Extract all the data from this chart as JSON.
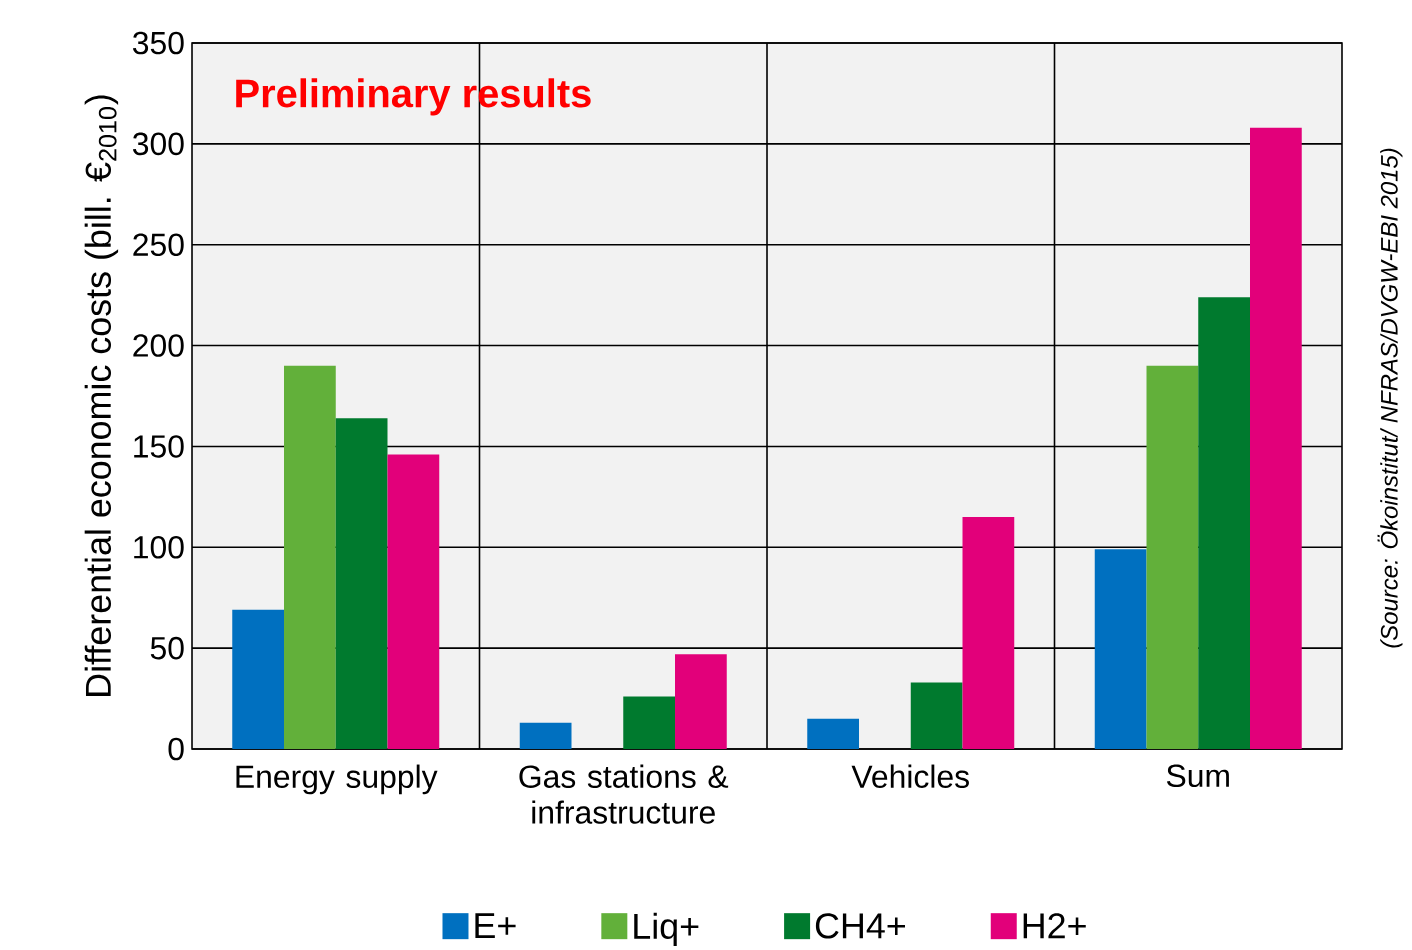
{
  "chart_data": {
    "type": "bar",
    "title": "Preliminary results",
    "ylabel": "Differential economic costs (bill. €$_{2010}$)",
    "categories": [
      "Energy supply",
      "Gas stations & infrastructure",
      "Vehicles",
      "Sum"
    ],
    "series": [
      {
        "name": "E+",
        "color": "#0070c0",
        "values": [
          69,
          13,
          15,
          99
        ]
      },
      {
        "name": "Liq+",
        "color": "#62b03a",
        "values": [
          190,
          null,
          null,
          190
        ]
      },
      {
        "name": "CH4+",
        "color": "#007a2e",
        "values": [
          164,
          26,
          33,
          224
        ]
      },
      {
        "name": "H2+",
        "color": "#e2007a",
        "values": [
          146,
          47,
          115,
          308
        ]
      }
    ],
    "ylim": [
      0,
      350
    ],
    "yticks": [
      0,
      50,
      100,
      150,
      200,
      250,
      300,
      350
    ],
    "grid": true,
    "legend": "bottom",
    "annotations": [
      "(Source: Ökoinstitut/ NFRAS/DVGW-EBI 2015)"
    ]
  }
}
